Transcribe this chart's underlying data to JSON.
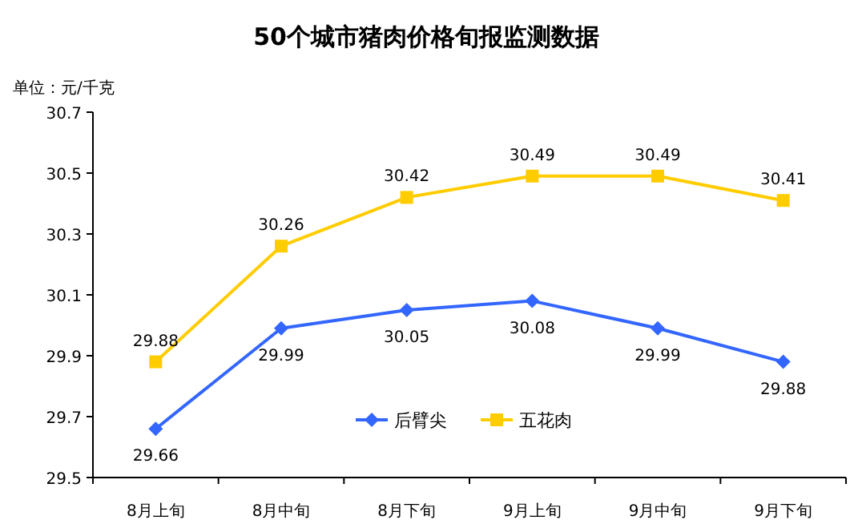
{
  "chart_data": {
    "type": "line",
    "title": "50个城市猪肉价格旬报监测数据",
    "ylabel": "单位：元/千克",
    "categories": [
      "8月上旬",
      "8月中旬",
      "8月下旬",
      "9月上旬",
      "9月中旬",
      "9月下旬"
    ],
    "series": [
      {
        "name": "后臂尖",
        "color": "#3366ff",
        "marker": "diamond",
        "values": [
          29.66,
          29.99,
          30.05,
          30.08,
          29.99,
          29.88
        ]
      },
      {
        "name": "五花肉",
        "color": "#ffcc00",
        "marker": "square",
        "values": [
          29.88,
          30.26,
          30.42,
          30.49,
          30.49,
          30.41
        ]
      }
    ],
    "ylim": [
      29.5,
      30.7
    ],
    "yticks": [
      29.5,
      29.7,
      29.9,
      30.1,
      30.3,
      30.5,
      30.7
    ],
    "grid": false,
    "legend": "bottom",
    "data_labels": true
  }
}
